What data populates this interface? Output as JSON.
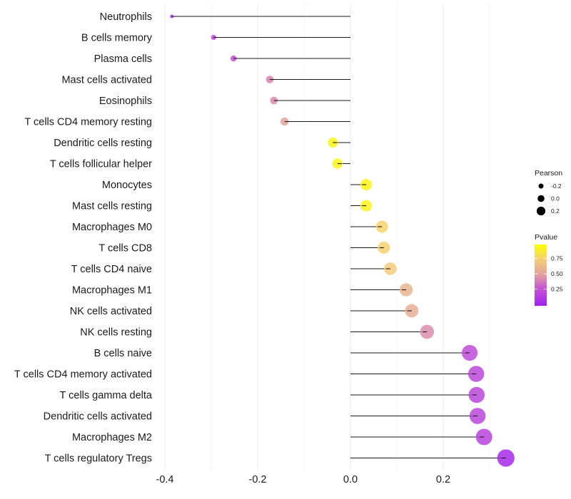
{
  "chart_data": {
    "type": "lollipop",
    "title": "",
    "xlabel": "",
    "ylabel": "",
    "xlim": [
      -0.42,
      0.345
    ],
    "x_ticks": [
      -0.4,
      -0.2,
      0.0,
      0.2
    ],
    "x_tick_labels": [
      "-0.4",
      "-0.2",
      "0.0",
      "0.2"
    ],
    "grid": true,
    "categories": [
      "Neutrophils",
      "B cells memory",
      "Plasma cells",
      "Mast cells activated",
      "Eosinophils",
      "T cells CD4 memory resting",
      "Dendritic cells resting",
      "T cells follicular helper",
      "Monocytes",
      "Mast cells resting",
      "Macrophages M0",
      "T cells CD8",
      "T cells CD4 naive",
      "Macrophages M1",
      "NK cells activated",
      "NK cells resting",
      "B cells naive",
      "T cells CD4 memory activated",
      "T cells gamma delta",
      "Dendritic cells activated",
      "Macrophages M2",
      "T cells regulatory  Tregs"
    ],
    "pearson": [
      -0.385,
      -0.295,
      -0.252,
      -0.174,
      -0.165,
      -0.142,
      -0.038,
      -0.028,
      0.034,
      0.034,
      0.068,
      0.072,
      0.086,
      0.12,
      0.132,
      0.165,
      0.257,
      0.271,
      0.272,
      0.274,
      0.288,
      0.335
    ],
    "pvalue": [
      0.02,
      0.2,
      0.25,
      0.42,
      0.44,
      0.52,
      0.95,
      0.95,
      0.95,
      0.95,
      0.78,
      0.77,
      0.74,
      0.62,
      0.58,
      0.45,
      0.22,
      0.2,
      0.2,
      0.2,
      0.18,
      0.05
    ],
    "legend": {
      "position": "right",
      "size": {
        "title": "Pearson",
        "values": [
          -0.2,
          0.0,
          0.2
        ],
        "labels": [
          "-0.2",
          "0.0",
          "0.2"
        ]
      },
      "color": {
        "title": "Pvalue",
        "range": [
          0.0,
          1.0
        ],
        "ticks": [
          0.25,
          0.5,
          0.75
        ],
        "labels": [
          "0.25",
          "0.50",
          "0.75"
        ],
        "low_color": "#a020f0",
        "mid_color": "#e0a0a0",
        "high_color": "#ffff00"
      }
    }
  }
}
